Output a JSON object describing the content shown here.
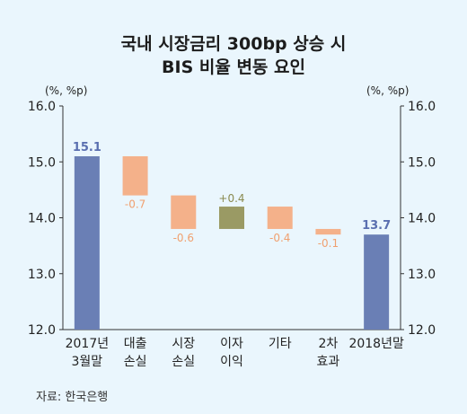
{
  "title_lines": [
    "국내 시장금리 300bp 상승 시",
    "BIS 비율 변동 요인"
  ],
  "unit_left": "(%, %p)",
  "unit_right": "(%, %p)",
  "source": "자료: 한국은행",
  "colors": {
    "base_bar": "#6a7fb5",
    "negative_bar": "#f4b18a",
    "positive_bar": "#9a9a64",
    "base_label": "#5a6fb0",
    "negative_label": "#f0a070",
    "positive_label": "#8a8a50",
    "axis": "#333333"
  },
  "chart_data": {
    "type": "waterfall",
    "ylim": [
      12.0,
      16.0
    ],
    "yticks": [
      "12.0",
      "13.0",
      "14.0",
      "15.0",
      "16.0"
    ],
    "categories": [
      [
        "2017년",
        "3월말"
      ],
      [
        "대출",
        "손실"
      ],
      [
        "시장",
        "손실"
      ],
      [
        "이자",
        "이익"
      ],
      [
        "기타",
        ""
      ],
      [
        "2차",
        "효과"
      ],
      [
        "2018년말",
        ""
      ]
    ],
    "bars": [
      {
        "kind": "total",
        "value": 15.1,
        "label": "15.1"
      },
      {
        "kind": "change",
        "value": -0.7,
        "label": "-0.7"
      },
      {
        "kind": "change",
        "value": -0.6,
        "label": "-0.6"
      },
      {
        "kind": "change",
        "value": 0.4,
        "label": "+0.4"
      },
      {
        "kind": "change",
        "value": -0.4,
        "label": "-0.4"
      },
      {
        "kind": "change",
        "value": -0.1,
        "label": "-0.1"
      },
      {
        "kind": "total",
        "value": 13.7,
        "label": "13.7"
      }
    ]
  }
}
